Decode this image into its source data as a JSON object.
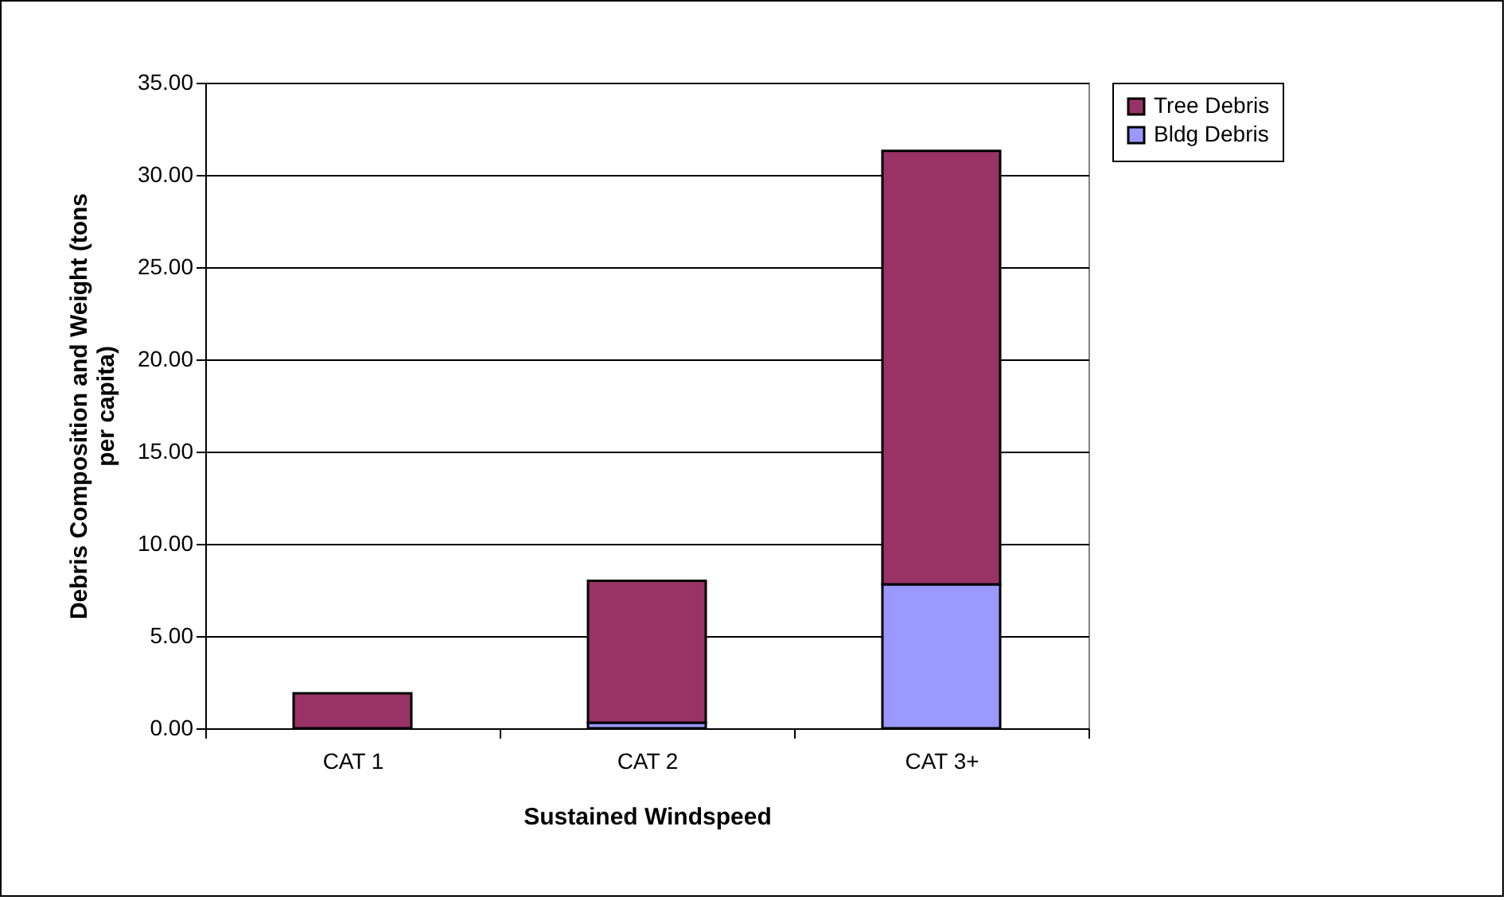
{
  "chart_data": {
    "type": "bar",
    "xlabel": "Sustained Windspeed",
    "ylabel": "Debris Composition and Weight (tons per capita)",
    "categories": [
      "CAT 1",
      "CAT 2",
      "CAT 3+"
    ],
    "series": [
      {
        "name": "Bldg Debris",
        "color": "#9999ff",
        "values": [
          0,
          0.3,
          7.8
        ]
      },
      {
        "name": "Tree Debris",
        "color": "#993366",
        "values": [
          1.9,
          7.7,
          23.5
        ]
      }
    ],
    "stacked": true,
    "ylim": [
      0,
      35
    ],
    "yticks": [
      {
        "value": 0,
        "label": "0.00"
      },
      {
        "value": 5,
        "label": "5.00"
      },
      {
        "value": 10,
        "label": "10.00"
      },
      {
        "value": 15,
        "label": "15.00"
      },
      {
        "value": 20,
        "label": "20.00"
      },
      {
        "value": 25,
        "label": "25.00"
      },
      {
        "value": 30,
        "label": "30.00"
      },
      {
        "value": 35,
        "label": "35.00"
      }
    ],
    "grid": "y",
    "legend": "right"
  }
}
